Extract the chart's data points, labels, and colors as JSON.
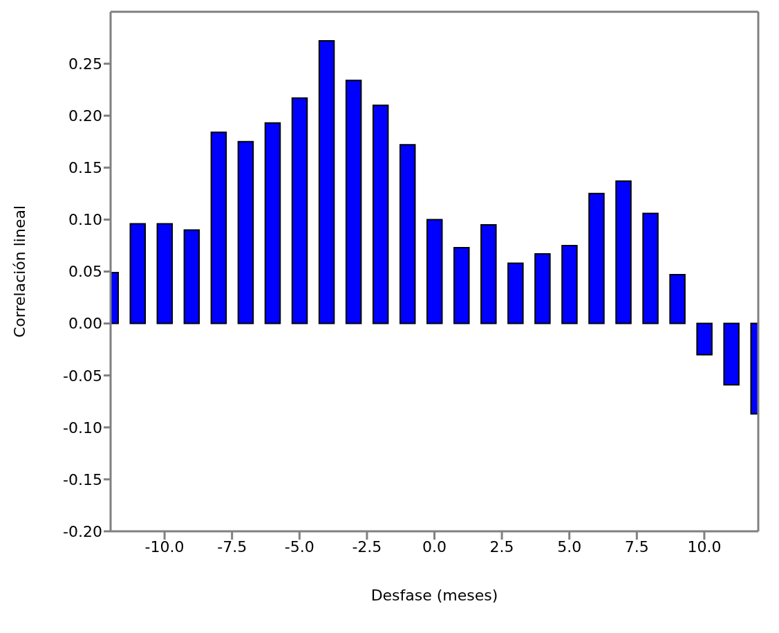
{
  "chart_data": {
    "type": "bar",
    "xlabel": "Desfase (meses)",
    "ylabel": "Correlación lineal",
    "x": [
      -12,
      -11,
      -10,
      -9,
      -8,
      -7,
      -6,
      -5,
      -4,
      -3,
      -2,
      -1,
      0,
      1,
      2,
      3,
      4,
      5,
      6,
      7,
      8,
      9,
      10,
      11,
      12
    ],
    "values": [
      0.049,
      0.096,
      0.096,
      0.09,
      0.184,
      0.175,
      0.193,
      0.217,
      0.272,
      0.234,
      0.21,
      0.172,
      0.1,
      0.073,
      0.095,
      0.058,
      0.067,
      0.075,
      0.125,
      0.137,
      0.106,
      0.047,
      -0.03,
      -0.059,
      -0.087
    ],
    "color": "#0000ff",
    "xlim": [
      -12,
      12
    ],
    "xticks": [
      {
        "value": -10,
        "label": "-10.0"
      },
      {
        "value": -7.5,
        "label": "-7.5"
      },
      {
        "value": -5,
        "label": "-5.0"
      },
      {
        "value": -2.5,
        "label": "-2.5"
      },
      {
        "value": 0,
        "label": "0.0"
      },
      {
        "value": 2.5,
        "label": "2.5"
      },
      {
        "value": 5,
        "label": "5.0"
      },
      {
        "value": 7.5,
        "label": "7.5"
      },
      {
        "value": 10,
        "label": "10.0"
      }
    ],
    "ylim": [
      -0.2,
      0.3
    ],
    "yticks": [
      {
        "value": -0.2,
        "label": "-0.20"
      },
      {
        "value": -0.15,
        "label": "-0.15"
      },
      {
        "value": -0.1,
        "label": "-0.10"
      },
      {
        "value": -0.05,
        "label": "-0.05"
      },
      {
        "value": 0,
        "label": "0.00"
      },
      {
        "value": 0.05,
        "label": "0.05"
      },
      {
        "value": 0.1,
        "label": "0.10"
      },
      {
        "value": 0.15,
        "label": "0.15"
      },
      {
        "value": 0.2,
        "label": "0.20"
      },
      {
        "value": 0.25,
        "label": "0.25"
      }
    ],
    "grid": false,
    "legend": false
  }
}
